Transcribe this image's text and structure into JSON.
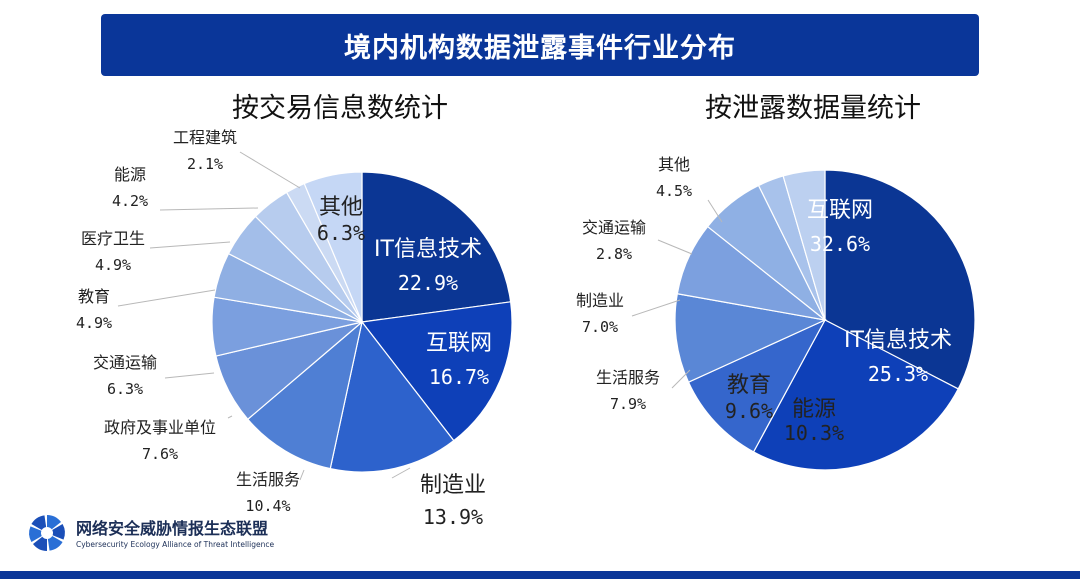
{
  "title": "境内机构数据泄露事件行业分布",
  "colors": {
    "banner": "#0a3699",
    "footer": "#0a3699",
    "leader": "#b8b8b8"
  },
  "chart_data": [
    {
      "type": "pie",
      "title": "按交易信息数统计",
      "slices": [
        {
          "name": "IT信息技术",
          "value": 22.9,
          "label": "22.9%",
          "color": "#0b3694",
          "label_color": "#ffffff",
          "inside": true
        },
        {
          "name": "互联网",
          "value": 16.7,
          "label": "16.7%",
          "color": "#0e40b8",
          "label_color": "#ffffff",
          "inside": true
        },
        {
          "name": "制造业",
          "value": 13.9,
          "label": "13.9%",
          "color": "#2d62cc",
          "label_color": "#222222",
          "inside": false
        },
        {
          "name": "生活服务",
          "value": 10.4,
          "label": "10.4%",
          "color": "#4f7fd4",
          "label_color": "#222222",
          "inside": false
        },
        {
          "name": "政府及事业单位",
          "value": 7.6,
          "label": "7.6%",
          "color": "#6a91d9",
          "label_color": "#222222",
          "inside": false
        },
        {
          "name": "交通运输",
          "value": 6.3,
          "label": "6.3%",
          "color": "#7b9fdf",
          "label_color": "#222222",
          "inside": false
        },
        {
          "name": "教育",
          "value": 4.9,
          "label": "4.9%",
          "color": "#8fafe3",
          "label_color": "#222222",
          "inside": false
        },
        {
          "name": "医疗卫生",
          "value": 4.9,
          "label": "4.9%",
          "color": "#a3bee9",
          "label_color": "#222222",
          "inside": false
        },
        {
          "name": "能源",
          "value": 4.2,
          "label": "4.2%",
          "color": "#b7ccee",
          "label_color": "#222222",
          "inside": false
        },
        {
          "name": "工程建筑",
          "value": 2.1,
          "label": "2.1%",
          "color": "#cbdaf3",
          "label_color": "#222222",
          "inside": false
        },
        {
          "name": "其他",
          "value": 6.3,
          "label": "6.3%",
          "color": "#c5d7f5",
          "label_color": "#222222",
          "inside": true
        }
      ]
    },
    {
      "type": "pie",
      "title": "按泄露数据量统计",
      "slices": [
        {
          "name": "互联网",
          "value": 32.6,
          "label": "32.6%",
          "color": "#0b3694",
          "label_color": "#ffffff",
          "inside": true
        },
        {
          "name": "IT信息技术",
          "value": 25.3,
          "label": "25.3%",
          "color": "#0e40b8",
          "label_color": "#ffffff",
          "inside": true
        },
        {
          "name": "能源",
          "value": 10.3,
          "label": "10.3%",
          "color": "#3566cc",
          "label_color": "#222222",
          "inside": true
        },
        {
          "name": "教育",
          "value": 9.6,
          "label": "9.6%",
          "color": "#5a87d6",
          "label_color": "#222222",
          "inside": true
        },
        {
          "name": "生活服务",
          "value": 7.9,
          "label": "7.9%",
          "color": "#7ca0df",
          "label_color": "#222222",
          "inside": false
        },
        {
          "name": "制造业",
          "value": 7.0,
          "label": "7.0%",
          "color": "#8fb0e4",
          "label_color": "#222222",
          "inside": false
        },
        {
          "name": "交通运输",
          "value": 2.8,
          "label": "2.8%",
          "color": "#a8c2eb",
          "label_color": "#222222",
          "inside": false
        },
        {
          "name": "其他",
          "value": 4.5,
          "label": "4.5%",
          "color": "#bcd0f0",
          "label_color": "#222222",
          "inside": false
        }
      ]
    }
  ],
  "logo": {
    "name_cn": "网络安全威胁情报生态联盟",
    "name_en": "Cybersecurity Ecology Alliance of Threat Intelligence",
    "color": "#2a6fd6"
  }
}
